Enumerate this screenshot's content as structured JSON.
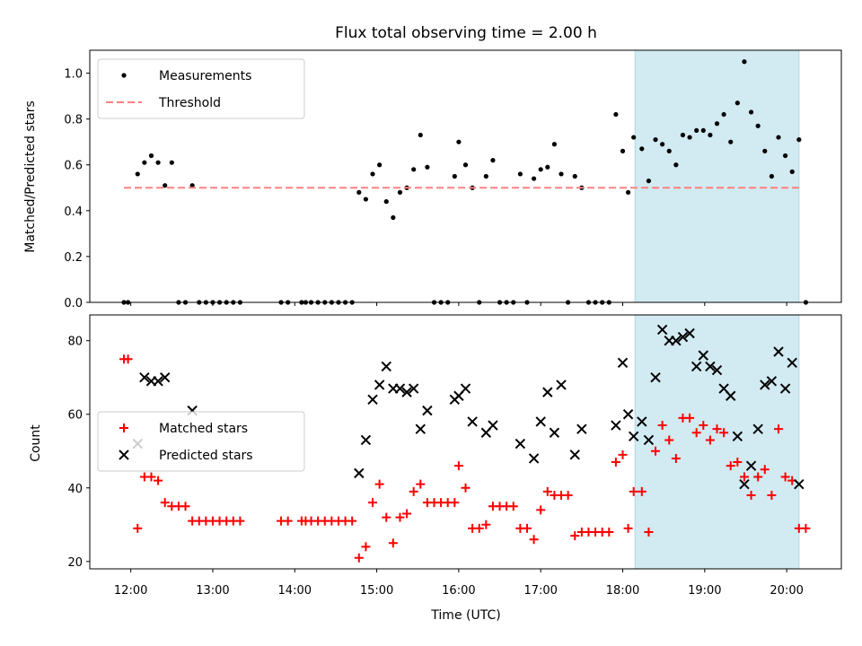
{
  "chart_data": [
    {
      "type": "scatter",
      "title": "Flux total observing time = 2.00 h",
      "xlabel": "",
      "ylabel": "Matched/Predicted stars",
      "xlim": [
        "11:30",
        "20:40"
      ],
      "ylim": [
        0,
        1.1
      ],
      "yticks": [
        "0.0",
        "0.2",
        "0.4",
        "0.6",
        "0.8",
        "1.0"
      ],
      "grid": false,
      "legend_position": "top-left",
      "shaded_span": {
        "x": [
          "18:09",
          "20:09"
        ],
        "color": "#add8e6"
      },
      "series": [
        {
          "name": "Measurements",
          "marker": "dot",
          "color": "#000000",
          "points": [
            [
              "11:55",
              0.0
            ],
            [
              "11:58",
              0.0
            ],
            [
              "12:05",
              0.56
            ],
            [
              "12:10",
              0.61
            ],
            [
              "12:15",
              0.64
            ],
            [
              "12:20",
              0.61
            ],
            [
              "12:25",
              0.51
            ],
            [
              "12:30",
              0.61
            ],
            [
              "12:35",
              0.0
            ],
            [
              "12:40",
              0.0
            ],
            [
              "12:45",
              0.51
            ],
            [
              "12:50",
              0.0
            ],
            [
              "12:55",
              0.0
            ],
            [
              "13:00",
              0.0
            ],
            [
              "13:05",
              0.0
            ],
            [
              "13:10",
              0.0
            ],
            [
              "13:15",
              0.0
            ],
            [
              "13:20",
              0.0
            ],
            [
              "13:50",
              0.0
            ],
            [
              "13:55",
              0.0
            ],
            [
              "14:05",
              0.0
            ],
            [
              "14:08",
              0.0
            ],
            [
              "14:12",
              0.0
            ],
            [
              "14:17",
              0.0
            ],
            [
              "14:22",
              0.0
            ],
            [
              "14:27",
              0.0
            ],
            [
              "14:32",
              0.0
            ],
            [
              "14:37",
              0.0
            ],
            [
              "14:42",
              0.0
            ],
            [
              "14:47",
              0.48
            ],
            [
              "14:52",
              0.45
            ],
            [
              "14:57",
              0.56
            ],
            [
              "15:02",
              0.6
            ],
            [
              "15:07",
              0.44
            ],
            [
              "15:12",
              0.37
            ],
            [
              "15:17",
              0.48
            ],
            [
              "15:22",
              0.5
            ],
            [
              "15:27",
              0.58
            ],
            [
              "15:32",
              0.73
            ],
            [
              "15:37",
              0.59
            ],
            [
              "15:42",
              0.0
            ],
            [
              "15:47",
              0.0
            ],
            [
              "15:52",
              0.0
            ],
            [
              "15:57",
              0.55
            ],
            [
              "16:00",
              0.7
            ],
            [
              "16:05",
              0.6
            ],
            [
              "16:10",
              0.5
            ],
            [
              "16:15",
              0.0
            ],
            [
              "16:20",
              0.55
            ],
            [
              "16:25",
              0.62
            ],
            [
              "16:30",
              0.0
            ],
            [
              "16:35",
              0.0
            ],
            [
              "16:40",
              0.0
            ],
            [
              "16:45",
              0.56
            ],
            [
              "16:50",
              0.0
            ],
            [
              "16:55",
              0.54
            ],
            [
              "17:00",
              0.58
            ],
            [
              "17:05",
              0.59
            ],
            [
              "17:10",
              0.69
            ],
            [
              "17:15",
              0.56
            ],
            [
              "17:20",
              0.0
            ],
            [
              "17:25",
              0.55
            ],
            [
              "17:30",
              0.5
            ],
            [
              "17:35",
              0.0
            ],
            [
              "17:40",
              0.0
            ],
            [
              "17:45",
              0.0
            ],
            [
              "17:50",
              0.0
            ],
            [
              "17:55",
              0.82
            ],
            [
              "18:00",
              0.66
            ],
            [
              "18:04",
              0.48
            ],
            [
              "18:08",
              0.72
            ],
            [
              "18:14",
              0.67
            ],
            [
              "18:19",
              0.53
            ],
            [
              "18:24",
              0.71
            ],
            [
              "18:29",
              0.69
            ],
            [
              "18:34",
              0.66
            ],
            [
              "18:39",
              0.6
            ],
            [
              "18:44",
              0.73
            ],
            [
              "18:49",
              0.72
            ],
            [
              "18:54",
              0.75
            ],
            [
              "18:59",
              0.75
            ],
            [
              "19:04",
              0.73
            ],
            [
              "19:09",
              0.78
            ],
            [
              "19:14",
              0.82
            ],
            [
              "19:19",
              0.7
            ],
            [
              "19:24",
              0.87
            ],
            [
              "19:29",
              1.05
            ],
            [
              "19:34",
              0.83
            ],
            [
              "19:39",
              0.77
            ],
            [
              "19:44",
              0.66
            ],
            [
              "19:49",
              0.55
            ],
            [
              "19:54",
              0.72
            ],
            [
              "19:59",
              0.64
            ],
            [
              "20:04",
              0.57
            ],
            [
              "20:09",
              0.71
            ],
            [
              "20:14",
              0.0
            ]
          ]
        },
        {
          "name": "Threshold",
          "marker": "dashed-line",
          "color": "#ff8080",
          "points": [
            [
              "11:55",
              0.5
            ],
            [
              "20:09",
              0.5
            ]
          ]
        }
      ]
    },
    {
      "type": "scatter",
      "title": "",
      "xlabel": "Time (UTC)",
      "ylabel": "Count",
      "xlim": [
        "11:30",
        "20:40"
      ],
      "ylim": [
        18,
        87
      ],
      "yticks": [
        "20",
        "40",
        "60",
        "80"
      ],
      "xticks": [
        "12:00",
        "13:00",
        "14:00",
        "15:00",
        "16:00",
        "17:00",
        "18:00",
        "19:00",
        "20:00"
      ],
      "grid": false,
      "legend_position": "center-left",
      "shaded_span": {
        "x": [
          "18:09",
          "20:09"
        ],
        "color": "#add8e6"
      },
      "series": [
        {
          "name": "Matched stars",
          "marker": "plus",
          "color": "#ff0000",
          "points": [
            [
              "11:55",
              75
            ],
            [
              "11:58",
              75
            ],
            [
              "12:05",
              29
            ],
            [
              "12:10",
              43
            ],
            [
              "12:15",
              43
            ],
            [
              "12:20",
              42
            ],
            [
              "12:25",
              36
            ],
            [
              "12:30",
              35
            ],
            [
              "12:35",
              35
            ],
            [
              "12:40",
              35
            ],
            [
              "12:45",
              31
            ],
            [
              "12:50",
              31
            ],
            [
              "12:55",
              31
            ],
            [
              "13:00",
              31
            ],
            [
              "13:05",
              31
            ],
            [
              "13:10",
              31
            ],
            [
              "13:15",
              31
            ],
            [
              "13:20",
              31
            ],
            [
              "13:50",
              31
            ],
            [
              "13:55",
              31
            ],
            [
              "14:05",
              31
            ],
            [
              "14:08",
              31
            ],
            [
              "14:12",
              31
            ],
            [
              "14:17",
              31
            ],
            [
              "14:22",
              31
            ],
            [
              "14:27",
              31
            ],
            [
              "14:32",
              31
            ],
            [
              "14:37",
              31
            ],
            [
              "14:42",
              31
            ],
            [
              "14:47",
              21
            ],
            [
              "14:52",
              24
            ],
            [
              "14:57",
              36
            ],
            [
              "15:02",
              41
            ],
            [
              "15:07",
              32
            ],
            [
              "15:12",
              25
            ],
            [
              "15:17",
              32
            ],
            [
              "15:22",
              33
            ],
            [
              "15:27",
              39
            ],
            [
              "15:32",
              41
            ],
            [
              "15:37",
              36
            ],
            [
              "15:42",
              36
            ],
            [
              "15:47",
              36
            ],
            [
              "15:52",
              36
            ],
            [
              "15:57",
              36
            ],
            [
              "16:00",
              46
            ],
            [
              "16:05",
              40
            ],
            [
              "16:10",
              29
            ],
            [
              "16:15",
              29
            ],
            [
              "16:20",
              30
            ],
            [
              "16:25",
              35
            ],
            [
              "16:30",
              35
            ],
            [
              "16:35",
              35
            ],
            [
              "16:40",
              35
            ],
            [
              "16:45",
              29
            ],
            [
              "16:50",
              29
            ],
            [
              "16:55",
              26
            ],
            [
              "17:00",
              34
            ],
            [
              "17:05",
              39
            ],
            [
              "17:10",
              38
            ],
            [
              "17:15",
              38
            ],
            [
              "17:20",
              38
            ],
            [
              "17:25",
              27
            ],
            [
              "17:30",
              28
            ],
            [
              "17:35",
              28
            ],
            [
              "17:40",
              28
            ],
            [
              "17:45",
              28
            ],
            [
              "17:50",
              28
            ],
            [
              "17:55",
              47
            ],
            [
              "18:00",
              49
            ],
            [
              "18:04",
              29
            ],
            [
              "18:08",
              39
            ],
            [
              "18:14",
              39
            ],
            [
              "18:19",
              28
            ],
            [
              "18:24",
              50
            ],
            [
              "18:29",
              57
            ],
            [
              "18:34",
              53
            ],
            [
              "18:39",
              48
            ],
            [
              "18:44",
              59
            ],
            [
              "18:49",
              59
            ],
            [
              "18:54",
              55
            ],
            [
              "18:59",
              57
            ],
            [
              "19:04",
              53
            ],
            [
              "19:09",
              56
            ],
            [
              "19:14",
              55
            ],
            [
              "19:19",
              46
            ],
            [
              "19:24",
              47
            ],
            [
              "19:29",
              43
            ],
            [
              "19:34",
              38
            ],
            [
              "19:39",
              43
            ],
            [
              "19:44",
              45
            ],
            [
              "19:49",
              38
            ],
            [
              "19:54",
              56
            ],
            [
              "19:59",
              43
            ],
            [
              "20:04",
              42
            ],
            [
              "20:09",
              29
            ],
            [
              "20:14",
              29
            ]
          ]
        },
        {
          "name": "Predicted stars",
          "marker": "x",
          "color": "#000000",
          "points": [
            [
              "12:05",
              52
            ],
            [
              "12:10",
              70
            ],
            [
              "12:15",
              69
            ],
            [
              "12:20",
              69
            ],
            [
              "12:25",
              70
            ],
            [
              "12:45",
              61
            ],
            [
              "14:47",
              44
            ],
            [
              "14:52",
              53
            ],
            [
              "14:57",
              64
            ],
            [
              "15:02",
              68
            ],
            [
              "15:07",
              73
            ],
            [
              "15:12",
              67
            ],
            [
              "15:17",
              67
            ],
            [
              "15:22",
              66
            ],
            [
              "15:27",
              67
            ],
            [
              "15:32",
              56
            ],
            [
              "15:37",
              61
            ],
            [
              "15:57",
              64
            ],
            [
              "16:00",
              65
            ],
            [
              "16:05",
              67
            ],
            [
              "16:10",
              58
            ],
            [
              "16:20",
              55
            ],
            [
              "16:25",
              57
            ],
            [
              "16:45",
              52
            ],
            [
              "16:55",
              48
            ],
            [
              "17:00",
              58
            ],
            [
              "17:05",
              66
            ],
            [
              "17:10",
              55
            ],
            [
              "17:15",
              68
            ],
            [
              "17:25",
              49
            ],
            [
              "17:30",
              56
            ],
            [
              "17:55",
              57
            ],
            [
              "18:00",
              74
            ],
            [
              "18:04",
              60
            ],
            [
              "18:08",
              54
            ],
            [
              "18:14",
              58
            ],
            [
              "18:19",
              53
            ],
            [
              "18:24",
              70
            ],
            [
              "18:29",
              83
            ],
            [
              "18:34",
              80
            ],
            [
              "18:39",
              80
            ],
            [
              "18:44",
              81
            ],
            [
              "18:49",
              82
            ],
            [
              "18:54",
              73
            ],
            [
              "18:59",
              76
            ],
            [
              "19:04",
              73
            ],
            [
              "19:09",
              72
            ],
            [
              "19:14",
              67
            ],
            [
              "19:19",
              65
            ],
            [
              "19:24",
              54
            ],
            [
              "19:29",
              41
            ],
            [
              "19:34",
              46
            ],
            [
              "19:39",
              56
            ],
            [
              "19:44",
              68
            ],
            [
              "19:49",
              69
            ],
            [
              "19:54",
              77
            ],
            [
              "19:59",
              67
            ],
            [
              "20:04",
              74
            ],
            [
              "20:09",
              41
            ]
          ]
        }
      ]
    }
  ]
}
